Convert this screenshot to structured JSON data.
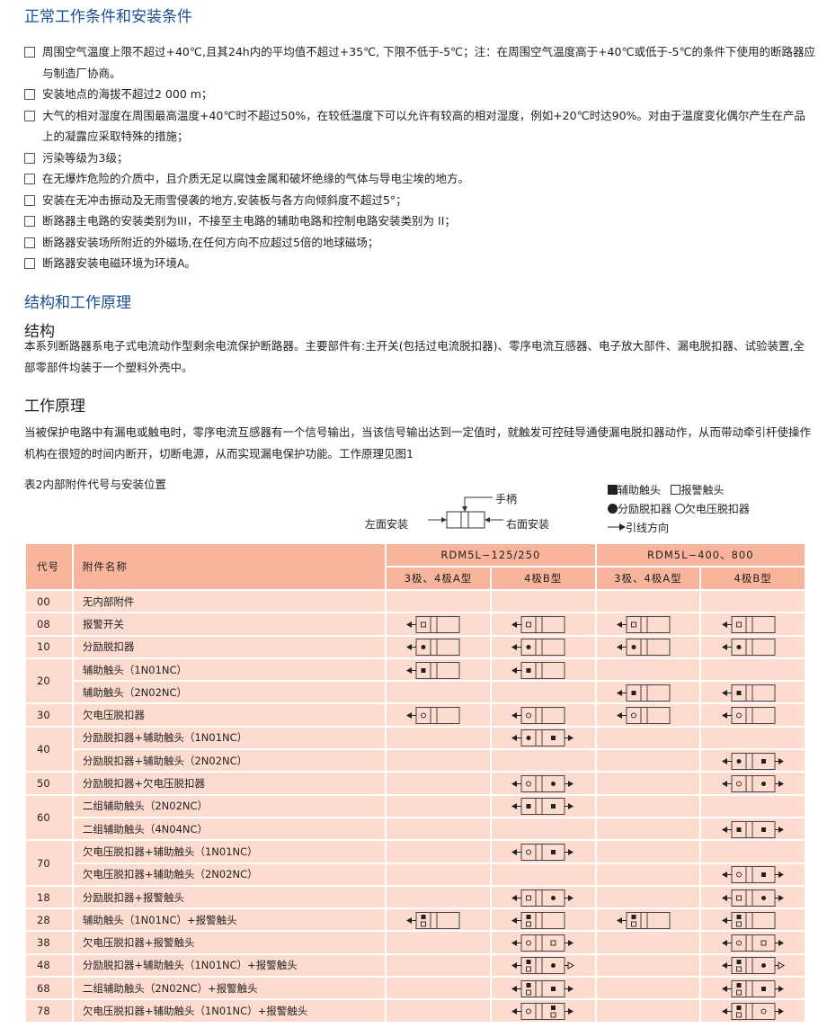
{
  "section1": {
    "title": "正常工作条件和安装条件",
    "items": [
      "周围空气温度上限不超过+40℃,且其24h内的平均值不超过+35℃, 下限不低于-5℃；注：在周围空气温度高于+40℃或低于-5℃的条件下使用的断路器应与制造厂协商。",
      "安装地点的海拔不超过2 000 m；",
      "大气的相对湿度在周围最高温度+40℃时不超过50%，在较低温度下可以允许有较高的相对湿度，例如+20℃时达90%。对由于温度变化偶尔产生在产品上的凝露应采取特殊的措施；",
      "污染等级为3级；",
      "在无爆炸危险的介质中，且介质无足以腐蚀金属和破坏绝缘的气体与导电尘埃的地方。",
      "安装在无冲击振动及无雨雪侵袭的地方,安装板与各方向倾斜度不超过5°；",
      "断路器主电路的安装类别为III，不接至主电路的辅助电路和控制电路安装类别为 II；",
      "断路器安装场所附近的外磁场,在任何方向不应超过5倍的地球磁场；",
      "断路器安装电磁环境为环境A。"
    ]
  },
  "section2": {
    "title": "结构和工作原理",
    "structure_title": "结构",
    "structure_text": "本系列断路器系电子式电流动作型剩余电流保护断路器。主要部件有:主开关(包括过电流脱扣器)、零序电流互感器、电子放大部件、漏电脱扣器、试验装置,全部零部件均装于一个塑料外壳中。",
    "principle_title": "工作原理",
    "principle_text": "当被保护电路中有漏电或触电时，零序电流互感器有一个信号输出，当该信号输出达到一定值时，就触发可控硅导通使漏电脱扣器动作，从而带动牵引杆使操作机构在很短的时间内断开，切断电源，从而实现漏电保护功能。工作原理见图1"
  },
  "table_caption": "表2内部附件代号与安装位置",
  "diagram": {
    "handle": "手柄",
    "left": "左面安装",
    "right": "右面安装"
  },
  "legend": {
    "aux": "辅助触头",
    "alarm": "报警触头",
    "shunt": "分励脱扣器",
    "undervoltage": "欠电压脱扣器",
    "lead": "引线方向"
  },
  "table": {
    "headers": {
      "code": "代号",
      "name": "附件名称",
      "group1": "RDM5L−125/250",
      "group2": "RDM5L−400、800",
      "sub": [
        "3极、4极A型",
        "4极B型",
        "3极、4极A型",
        "4极B型"
      ]
    },
    "rows": [
      {
        "code": "00",
        "name": "无内部附件",
        "span": 1,
        "cells": [
          "",
          "",
          "",
          ""
        ]
      },
      {
        "code": "08",
        "name": "报警开关",
        "span": 1,
        "cells": [
          "o",
          "o",
          "o",
          "o"
        ]
      },
      {
        "code": "10",
        "name": "分励脱扣器",
        "span": 1,
        "cells": [
          "d",
          "d",
          "d",
          "d"
        ]
      },
      {
        "code": "20",
        "name": "辅助触头（1N01NC）",
        "span": 2,
        "cells": [
          "s",
          "s",
          "",
          ""
        ]
      },
      {
        "code": "",
        "name": "辅助触头（2N02NC）",
        "span": 0,
        "cells": [
          "",
          "",
          "s",
          "s"
        ]
      },
      {
        "code": "30",
        "name": "欠电压脱扣器",
        "span": 1,
        "cells": [
          "c",
          "c",
          "c",
          "c"
        ]
      },
      {
        "code": "40",
        "name": "分励脱扣器+辅助触头（1N01NC）",
        "span": 2,
        "cells": [
          "",
          "d|s",
          "",
          ""
        ]
      },
      {
        "code": "",
        "name": "分励脱扣器+辅助触头（2N02NC）",
        "span": 0,
        "cells": [
          "",
          "",
          "",
          "d|s"
        ]
      },
      {
        "code": "50",
        "name": "分励脱扣器+欠电压脱扣器",
        "span": 1,
        "cells": [
          "",
          "c|d",
          "",
          "c|d"
        ]
      },
      {
        "code": "60",
        "name": "二组辅助触头（2N02NC）",
        "span": 2,
        "cells": [
          "",
          "s|s",
          "",
          ""
        ]
      },
      {
        "code": "",
        "name": "二组辅助触头（4N04NC）",
        "span": 0,
        "cells": [
          "",
          "",
          "",
          "s|s"
        ]
      },
      {
        "code": "70",
        "name": "欠电压脱扣器+辅助触头（1N01NC）",
        "span": 2,
        "cells": [
          "",
          "c|s",
          "",
          ""
        ]
      },
      {
        "code": "",
        "name": "欠电压脱扣器+辅助触头（2N02NC）",
        "span": 0,
        "cells": [
          "",
          "",
          "",
          "c|s"
        ]
      },
      {
        "code": "18",
        "name": "分励脱扣器+报警触头",
        "span": 1,
        "cells": [
          "",
          "o|d",
          "",
          "o|d"
        ]
      },
      {
        "code": "28",
        "name": "辅助触头（1N01NC）+报警触头",
        "span": 1,
        "cells": [
          "so",
          "so",
          "so",
          "so"
        ]
      },
      {
        "code": "38",
        "name": "欠电压脱扣器+报警触头",
        "span": 1,
        "cells": [
          "",
          "c|o",
          "",
          "c|o"
        ]
      },
      {
        "code": "48",
        "name": "分励脱扣器+辅助触头（1N01NC）+报警触头",
        "span": 1,
        "cells": [
          "",
          "so|d|hollow",
          "",
          "so|d|hollow"
        ]
      },
      {
        "code": "68",
        "name": "二组辅助触头（2N02NC）+报警触头",
        "span": 1,
        "cells": [
          "",
          "so|s",
          "",
          "so|s"
        ]
      },
      {
        "code": "78",
        "name": "欠电压脱扣器+辅助触头（1N01NC）+报警触头",
        "span": 1,
        "cells": [
          "",
          "c|so",
          "",
          "so|c"
        ]
      }
    ]
  },
  "colors": {
    "heading": "#1d4f91",
    "header_bg": "#f8b59b",
    "row_bg": "#fddccf"
  }
}
